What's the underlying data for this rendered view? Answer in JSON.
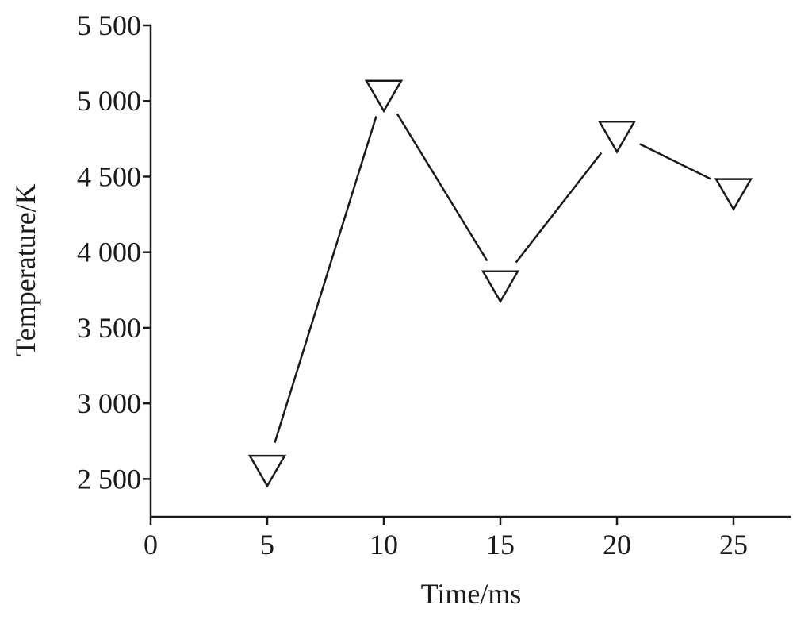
{
  "chart_data": {
    "type": "line",
    "title": "",
    "xlabel": "Time/ms",
    "ylabel": "Temperature/K",
    "xlim": [
      0,
      27.3
    ],
    "ylim": [
      2250,
      5500
    ],
    "x_ticks": [
      0,
      5,
      10,
      15,
      20,
      25
    ],
    "x_tick_labels": [
      "0",
      "5",
      "10",
      "15",
      "20",
      "25"
    ],
    "y_ticks": [
      2500,
      3000,
      3500,
      4000,
      4500,
      5000,
      5500
    ],
    "y_tick_labels": [
      "2 500",
      "3 000",
      "3 500",
      "4 000",
      "4 500",
      "5 000",
      "5 500"
    ],
    "grid": false,
    "legend": "none",
    "marker": "open-down-triangle",
    "series": [
      {
        "x": [
          5,
          10,
          15,
          20,
          25
        ],
        "y": [
          2580,
          5060,
          3800,
          4790,
          4410
        ]
      }
    ],
    "colors": {
      "line": "#1a1a1a",
      "marker_fill": "#ffffff"
    }
  }
}
